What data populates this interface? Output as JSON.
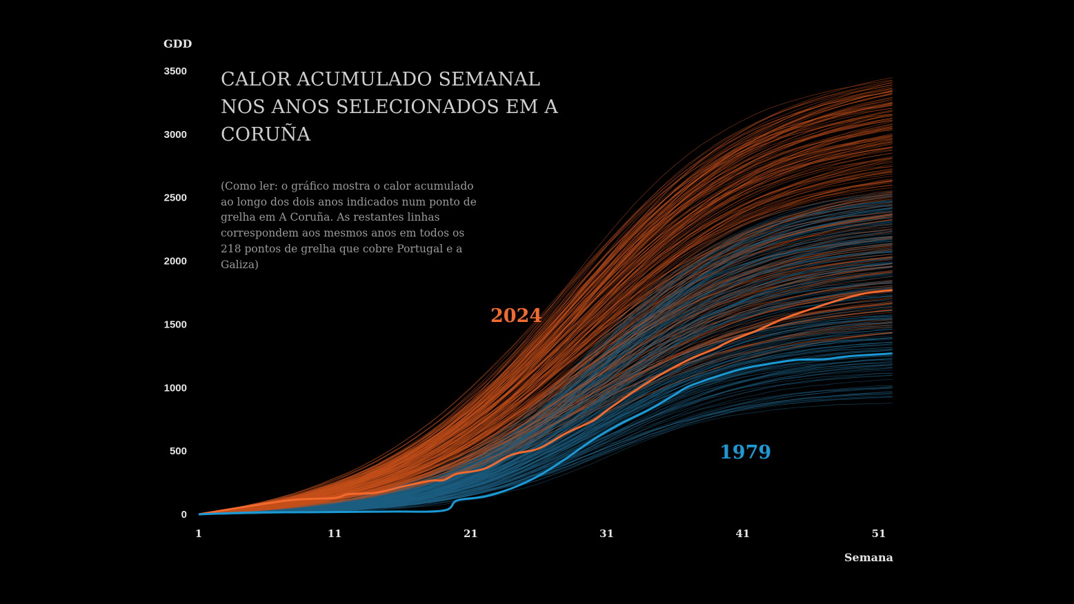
{
  "chart_data": {
    "type": "line",
    "title": "CALOR ACUMULADO SEMANAL NOS ANOS SELECIONADOS EM A CORUÑA",
    "subtitle": "(Como ler: o gráfico mostra o calor acumulado ao longo dos dois anos indicados num ponto de grelha em A Coruña. As restantes linhas correspondem aos mesmos anos em todos os 218 pontos de grelha que cobre Portugal e a Galiza)",
    "xlabel": "Semana",
    "ylabel": "GDD",
    "xlim": [
      1,
      52
    ],
    "ylim": [
      0,
      3500
    ],
    "x_ticks": [
      "1",
      "11",
      "21",
      "31",
      "41",
      "51"
    ],
    "y_ticks": [
      "0",
      "500",
      "1000",
      "1500",
      "2000",
      "2500",
      "3000",
      "3500"
    ],
    "grid": false,
    "background": "#000000",
    "series": [
      {
        "name": "2024",
        "color": "#f26a2e",
        "x": [
          1,
          5,
          8,
          11,
          12,
          14,
          16,
          18,
          19,
          20,
          22,
          24,
          26,
          28,
          30,
          31,
          33,
          35,
          37,
          39,
          40,
          42,
          44,
          46,
          48,
          50,
          52
        ],
        "values": [
          0,
          70,
          115,
          130,
          160,
          170,
          220,
          265,
          270,
          320,
          360,
          470,
          520,
          640,
          740,
          820,
          970,
          1105,
          1220,
          1310,
          1365,
          1450,
          1545,
          1620,
          1690,
          1745,
          1770
        ]
      },
      {
        "name": "1979",
        "color": "#1a9ad6",
        "x": [
          1,
          5,
          10,
          15,
          19,
          20,
          22,
          24,
          26,
          28,
          30,
          32,
          34,
          36,
          37,
          39,
          41,
          43,
          45,
          47,
          49,
          52
        ],
        "values": [
          0,
          15,
          18,
          22,
          30,
          110,
          140,
          205,
          305,
          440,
          590,
          715,
          820,
          945,
          1010,
          1085,
          1150,
          1190,
          1220,
          1225,
          1250,
          1270
        ]
      }
    ],
    "background_series": [
      {
        "year": "2024",
        "count": 218,
        "color": "#c4501c",
        "final_range": [
          1400,
          3450
        ]
      },
      {
        "year": "1979",
        "count": 218,
        "color": "#1e5f82",
        "final_range": [
          870,
          2550
        ]
      }
    ]
  }
}
